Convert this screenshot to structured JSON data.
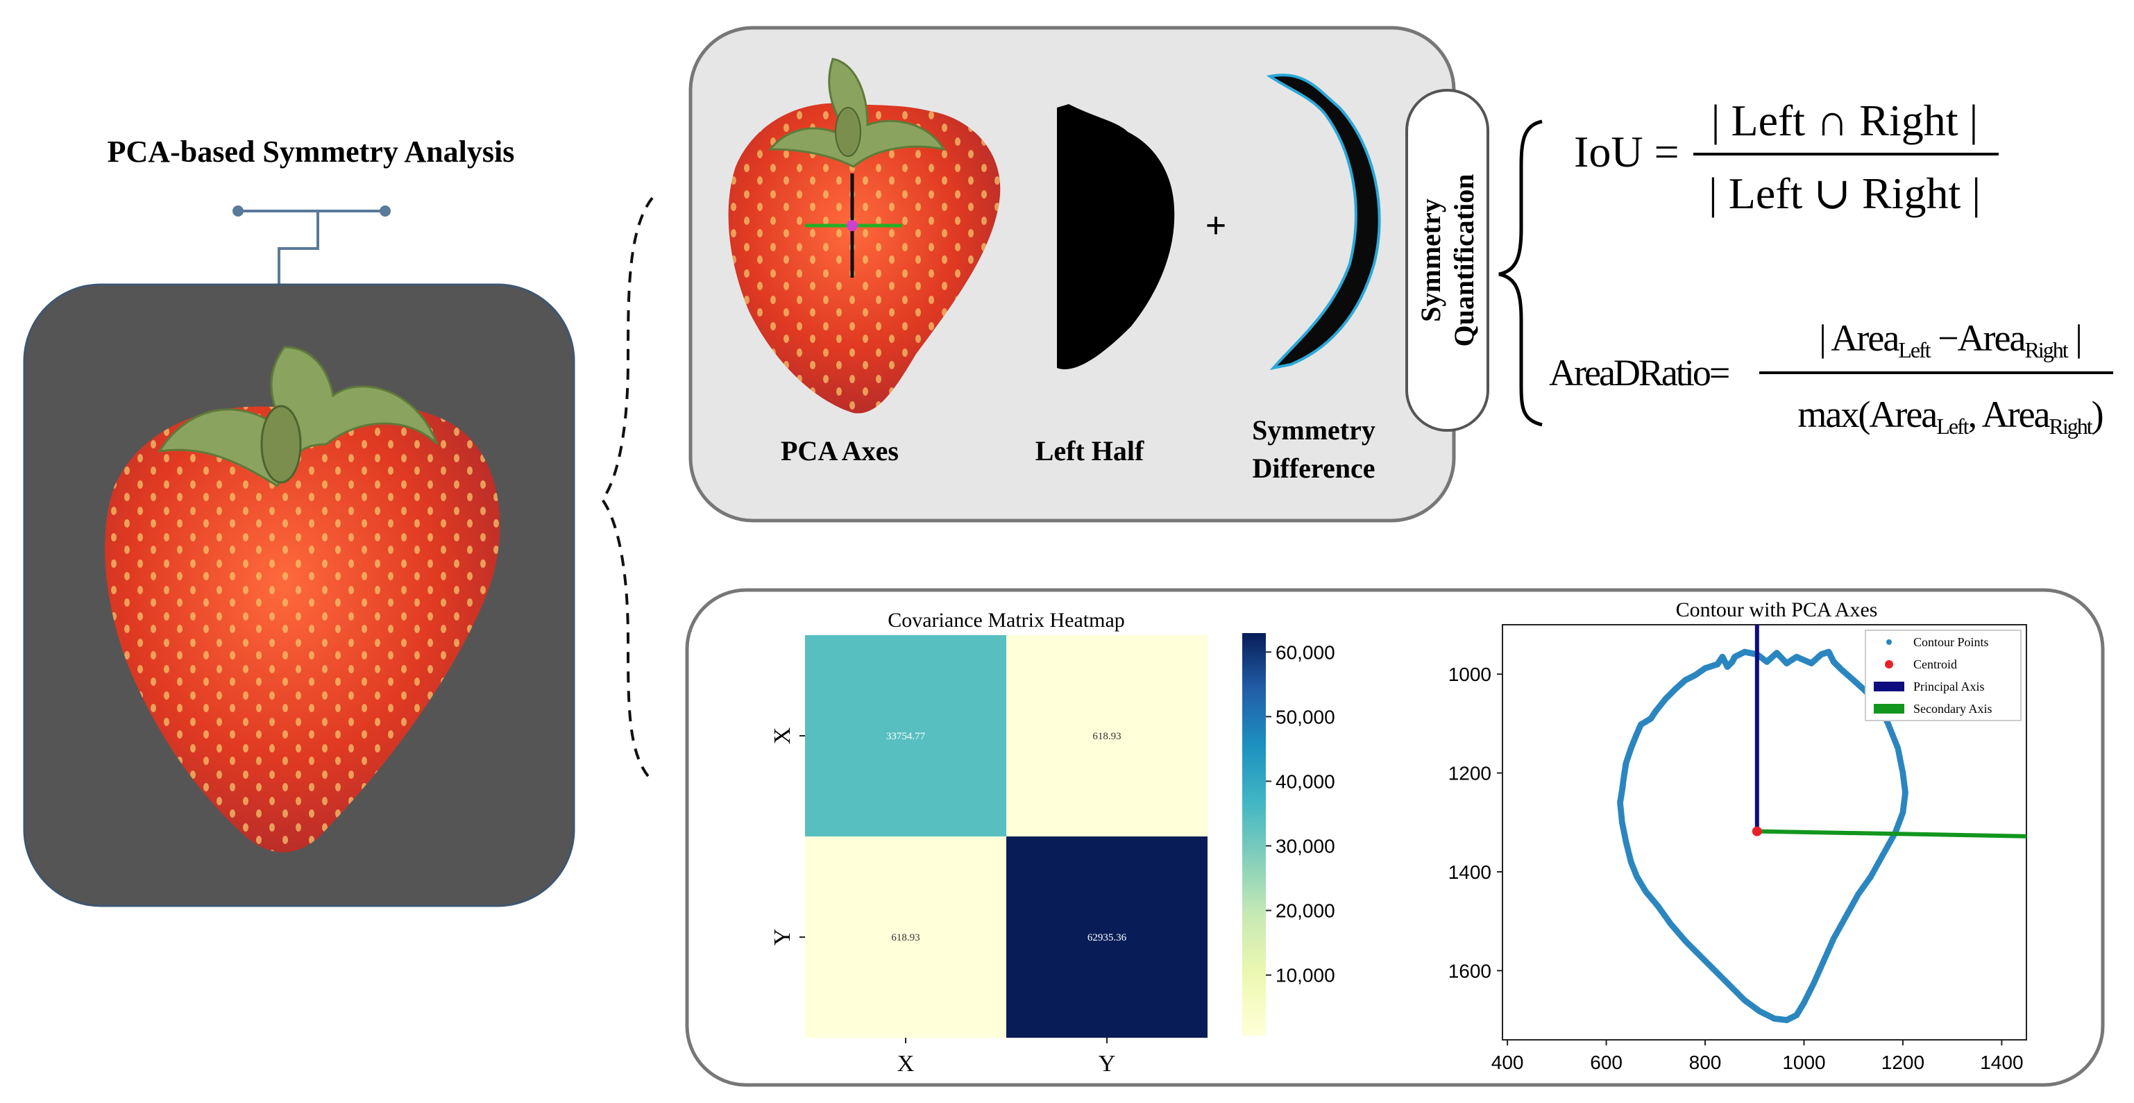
{
  "main_title": "PCA-based Symmetry Analysis",
  "top_panel": {
    "pca_axes_label": "PCA Axes",
    "left_half_label": "Left Half",
    "plus_sign": "+",
    "symmetry_difference_line1": "Symmetry",
    "symmetry_difference_line2": "Difference",
    "symmetry_quant_line1": "Symmetry",
    "symmetry_quant_line2": "Quantification"
  },
  "formulas": {
    "iou_lhs": "IoU =",
    "iou_numerator": "| Left ∩ Right |",
    "iou_denominator": "| Left ∪ Right |",
    "area_lhs": "AreaDRatio=",
    "area_numerator": {
      "open": "| Area",
      "left_sub": "Left",
      "minus": " −Area",
      "right_sub": "Right",
      "close": " |"
    },
    "area_denominator": {
      "open": "max(Area",
      "left_sub": "Left",
      "comma": ", Area",
      "right_sub": "Right",
      "close": ")"
    }
  },
  "colors": {
    "strawberry": "#e03a22",
    "leaf": "#8aa35e",
    "panel_bg": "#e6e6e6",
    "dark_panel": "#555555",
    "contour": "#2b86c0",
    "centroid": "#e8202a",
    "principal_axis": "#0d0d80",
    "secondary_axis": "#12961e"
  },
  "chart_data": [
    {
      "type": "heatmap",
      "title": "Covariance Matrix Heatmap",
      "x_categories": [
        "X",
        "Y"
      ],
      "y_categories": [
        "X",
        "Y"
      ],
      "values": [
        [
          33754.77,
          618.93
        ],
        [
          618.93,
          62935.36
        ]
      ],
      "value_labels": [
        [
          "33754.77",
          "618.93"
        ],
        [
          "618.93",
          "62935.36"
        ]
      ],
      "colorbar": {
        "ticks": [
          10000,
          20000,
          30000,
          40000,
          50000,
          60000
        ],
        "tick_labels": [
          "10,000",
          "20,000",
          "30,000",
          "40,000",
          "50,000",
          "60,000"
        ],
        "range": [
          618.93,
          62935.36
        ],
        "colormap": "YlGnBu"
      }
    },
    {
      "type": "scatter",
      "title": "Contour with PCA Axes",
      "xlim": [
        390,
        1450
      ],
      "ylim": [
        1740,
        900
      ],
      "x_ticks": [
        400,
        600,
        800,
        1000,
        1200,
        1400
      ],
      "y_ticks": [
        1000,
        1200,
        1400,
        1600
      ],
      "legend": [
        "Contour Points",
        "Centroid",
        "Principal Axis",
        "Secondary Axis"
      ],
      "legend_position": "top-right",
      "centroid": [
        905,
        1318
      ],
      "principal_axis": {
        "from": [
          905,
          1318
        ],
        "to": [
          905,
          900
        ]
      },
      "secondary_axis": {
        "from": [
          905,
          1318
        ],
        "to": [
          1450,
          1328
        ]
      },
      "contour": [
        [
          905,
          960
        ],
        [
          880,
          955
        ],
        [
          860,
          965
        ],
        [
          855,
          975
        ],
        [
          845,
          985
        ],
        [
          835,
          965
        ],
        [
          825,
          980
        ],
        [
          800,
          988
        ],
        [
          780,
          1002
        ],
        [
          760,
          1012
        ],
        [
          740,
          1030
        ],
        [
          720,
          1050
        ],
        [
          700,
          1075
        ],
        [
          690,
          1090
        ],
        [
          670,
          1102
        ],
        [
          660,
          1125
        ],
        [
          650,
          1150
        ],
        [
          640,
          1180
        ],
        [
          636,
          1205
        ],
        [
          632,
          1235
        ],
        [
          628,
          1260
        ],
        [
          632,
          1300
        ],
        [
          640,
          1340
        ],
        [
          650,
          1380
        ],
        [
          662,
          1410
        ],
        [
          680,
          1440
        ],
        [
          705,
          1470
        ],
        [
          730,
          1505
        ],
        [
          760,
          1540
        ],
        [
          790,
          1570
        ],
        [
          820,
          1600
        ],
        [
          850,
          1630
        ],
        [
          880,
          1660
        ],
        [
          910,
          1682
        ],
        [
          940,
          1697
        ],
        [
          965,
          1700
        ],
        [
          985,
          1690
        ],
        [
          1000,
          1665
        ],
        [
          1020,
          1625
        ],
        [
          1040,
          1580
        ],
        [
          1060,
          1535
        ],
        [
          1085,
          1490
        ],
        [
          1110,
          1445
        ],
        [
          1135,
          1410
        ],
        [
          1160,
          1365
        ],
        [
          1185,
          1320
        ],
        [
          1200,
          1280
        ],
        [
          1205,
          1240
        ],
        [
          1200,
          1200
        ],
        [
          1190,
          1150
        ],
        [
          1170,
          1100
        ],
        [
          1150,
          1060
        ],
        [
          1120,
          1030
        ],
        [
          1100,
          1012
        ],
        [
          1075,
          990
        ],
        [
          1060,
          975
        ],
        [
          1050,
          955
        ],
        [
          1035,
          960
        ],
        [
          1015,
          978
        ],
        [
          985,
          965
        ],
        [
          965,
          978
        ],
        [
          945,
          957
        ],
        [
          925,
          975
        ],
        [
          905,
          960
        ]
      ]
    }
  ]
}
